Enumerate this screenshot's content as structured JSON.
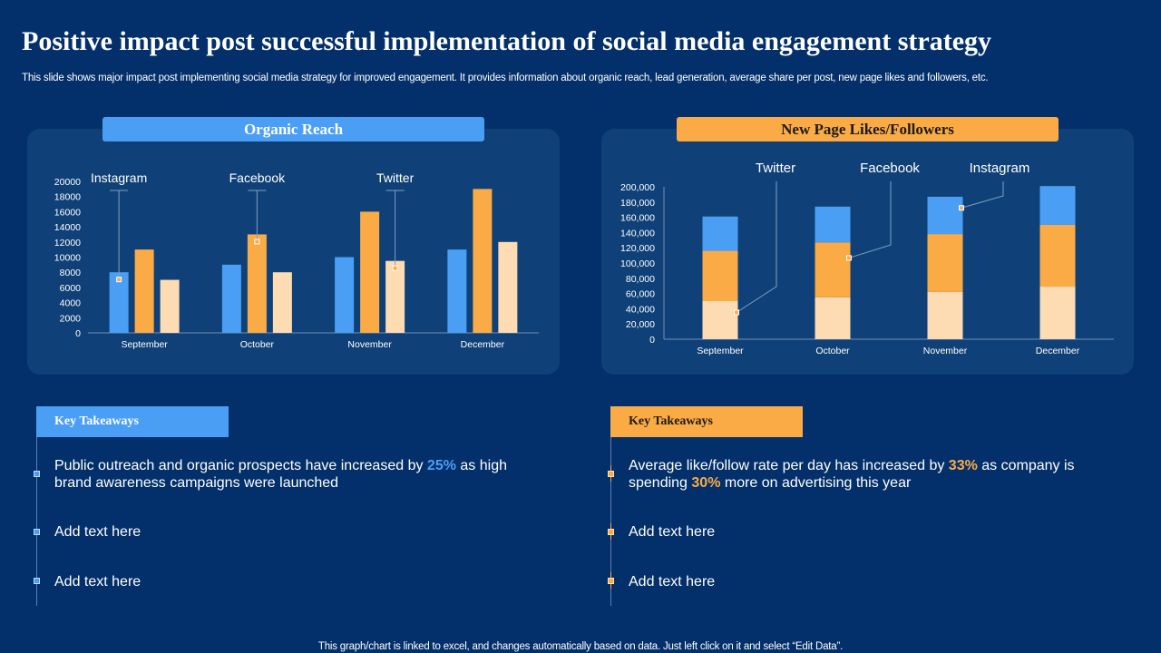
{
  "title": "Positive impact post successful implementation of social media engagement strategy",
  "subtitle": "This slide shows major impact post implementing social media strategy for improved engagement. It provides information about organic reach, lead generation, average share per post, new page likes and followers, etc.",
  "footer": "This graph/chart is linked to excel,  and changes automatically based on data. Just left click on it and select “Edit Data”.",
  "colors": {
    "background": "#03306a",
    "panel": "#0f4178",
    "blue": "#4a9ff5",
    "orange": "#fbab45",
    "peach": "#fddcb3"
  },
  "left_panel_label": "Organic Reach",
  "right_panel_label": "New Page Likes/Followers",
  "chart_data": [
    {
      "type": "bar",
      "title": "Organic Reach",
      "categories": [
        "September",
        "October",
        "November",
        "December"
      ],
      "series": [
        {
          "name": "Instagram",
          "color": "#4a9ff5",
          "values": [
            8000,
            9000,
            10000,
            11000
          ]
        },
        {
          "name": "Facebook",
          "color": "#fbab45",
          "values": [
            11000,
            13000,
            16000,
            19000
          ]
        },
        {
          "name": "Twitter",
          "color": "#fddcb3",
          "values": [
            7000,
            8000,
            9500,
            12000
          ]
        }
      ],
      "ylim": [
        0,
        20000
      ],
      "yticks": [
        0,
        2000,
        4000,
        6000,
        8000,
        10000,
        12000,
        14000,
        16000,
        18000,
        20000
      ],
      "ytick_labels": [
        "0",
        "2000",
        "4000",
        "6000",
        "8000",
        "10000",
        "12000",
        "14000",
        "16000",
        "18000",
        "20000"
      ],
      "callouts": [
        {
          "label": "Instagram",
          "series": 0,
          "category": 0
        },
        {
          "label": "Facebook",
          "series": 1,
          "category": 1
        },
        {
          "label": "Twitter",
          "series": 2,
          "category": 2
        }
      ]
    },
    {
      "type": "bar",
      "stacked": true,
      "title": "New Page Likes/Followers",
      "categories": [
        "September",
        "October",
        "November",
        "December"
      ],
      "series": [
        {
          "name": "Twitter",
          "color": "#fddcb3",
          "values": [
            50000,
            55000,
            62000,
            69000
          ]
        },
        {
          "name": "Facebook",
          "color": "#fbab45",
          "values": [
            66000,
            72000,
            76000,
            81000
          ]
        },
        {
          "name": "Instagram",
          "color": "#4a9ff5",
          "values": [
            45000,
            47000,
            49000,
            51000
          ]
        }
      ],
      "ylim": [
        0,
        200000
      ],
      "yticks": [
        0,
        20000,
        40000,
        60000,
        80000,
        100000,
        120000,
        140000,
        160000,
        180000,
        200000
      ],
      "ytick_labels": [
        "0",
        "20,000",
        "40,000",
        "60,000",
        "80,000",
        "100,000",
        "120,000",
        "140,000",
        "160,000",
        "180,000",
        "200,000"
      ],
      "callouts": [
        {
          "label": "Twitter",
          "series": 0,
          "category": 0
        },
        {
          "label": "Facebook",
          "series": 1,
          "category": 1
        },
        {
          "label": "Instagram",
          "series": 2,
          "category": 2
        }
      ]
    }
  ],
  "takeaways_left": {
    "header": "Key Takeaways",
    "item1_pre": "Public outreach and organic prospects have increased by ",
    "item1_highlight": "25%",
    "item1_post": " as high brand awareness campaigns were launched",
    "item2": "Add text here",
    "item3": "Add text here"
  },
  "takeaways_right": {
    "header": "Key Takeaways",
    "item1_pre": "Average like/follow rate per day has increased by ",
    "item1_highlight1": "33%",
    "item1_mid": " as company is spending ",
    "item1_highlight2": "30%",
    "item1_post": " more on advertising this year",
    "item2": "Add text here",
    "item3": "Add text here"
  }
}
